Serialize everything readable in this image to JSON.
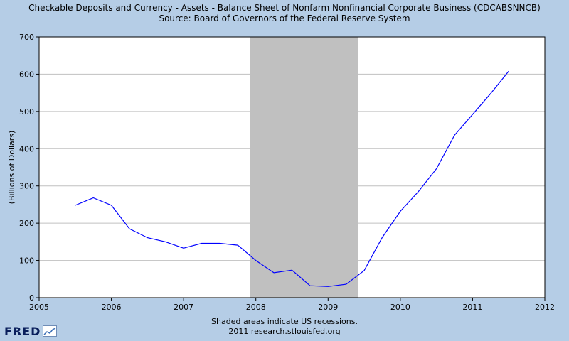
{
  "header": {
    "title": "Checkable Deposits and Currency - Assets - Balance Sheet of Nonfarm Nonfinancial Corporate Business (CDCABSNNCB)",
    "source": "Source: Board of Governors of the Federal Reserve System"
  },
  "footer": {
    "note": "Shaded areas indicate US recessions.",
    "credit": "2011 research.stlouisfed.org"
  },
  "logo": {
    "text": "FRED",
    "icon": "chart-mini-icon"
  },
  "colors": {
    "background": "#b5cde6",
    "plot_background": "#ffffff",
    "recession": "#c0c0c0",
    "series": "#0000ff",
    "grid": "#c0c0c0"
  },
  "chart_data": {
    "type": "line",
    "ylabel": "(Billions of Dollars)",
    "xlabel": "",
    "xlim": [
      2005,
      2012
    ],
    "ylim": [
      0,
      700
    ],
    "x_ticks": [
      "2005",
      "2006",
      "2007",
      "2008",
      "2009",
      "2010",
      "2011",
      "2012"
    ],
    "y_ticks": [
      "0",
      "100",
      "200",
      "300",
      "400",
      "500",
      "600",
      "700"
    ],
    "grid": "horizontal",
    "recessions": [
      {
        "start": "2007-12",
        "end": "2009-06"
      }
    ],
    "series": [
      {
        "x": [
          "2005-07",
          "2005-10",
          "2006-01",
          "2006-04",
          "2006-07",
          "2006-10",
          "2007-01",
          "2007-04",
          "2007-07",
          "2007-10",
          "2008-01",
          "2008-04",
          "2008-07",
          "2008-10",
          "2009-01",
          "2009-04",
          "2009-07",
          "2009-10",
          "2010-01",
          "2010-04",
          "2010-07",
          "2010-10",
          "2011-01",
          "2011-04",
          "2011-07"
        ],
        "values": [
          248,
          268,
          248,
          185,
          161,
          150,
          133,
          146,
          146,
          141,
          100,
          67,
          74,
          32,
          30,
          36,
          73,
          162,
          232,
          285,
          346,
          436,
          492,
          548,
          608
        ]
      }
    ]
  }
}
